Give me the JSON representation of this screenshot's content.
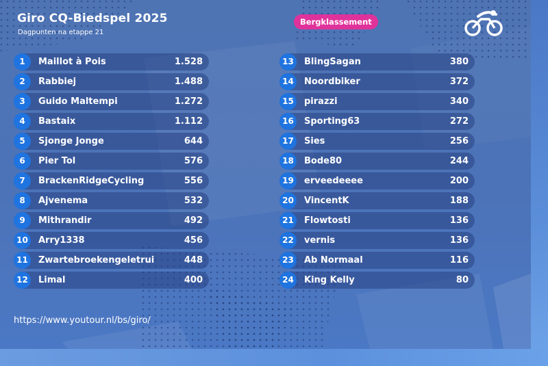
{
  "header": {
    "title": "Giro CQ-Biedspel 2025",
    "subtitle": "Dagpunten na etappe 21",
    "badge": "Bergklassement",
    "logo_icon": "cycling-logo-icon"
  },
  "colors": {
    "background": "#4c73b8",
    "row": "#2a4786",
    "rank_circle": "#1f74e0",
    "badge": "#e0329b",
    "text": "#ffffff"
  },
  "standings": {
    "left": [
      {
        "rank": "1",
        "name": "Maillot à Pois",
        "points": "1.528"
      },
      {
        "rank": "2",
        "name": "Rabbiej",
        "points": "1.488"
      },
      {
        "rank": "3",
        "name": "Guido Maltempi",
        "points": "1.272"
      },
      {
        "rank": "4",
        "name": "Bastaix",
        "points": "1.112"
      },
      {
        "rank": "5",
        "name": "Sjonge Jonge",
        "points": "644"
      },
      {
        "rank": "6",
        "name": "Pier Tol",
        "points": "576"
      },
      {
        "rank": "7",
        "name": "BrackenRidgeCycling",
        "points": "556"
      },
      {
        "rank": "8",
        "name": "Ajvenema",
        "points": "532"
      },
      {
        "rank": "9",
        "name": "Mithrandir",
        "points": "492"
      },
      {
        "rank": "10",
        "name": "Arry1338",
        "points": "456"
      },
      {
        "rank": "11",
        "name": "Zwartebroekengeletrui",
        "points": "448"
      },
      {
        "rank": "12",
        "name": "Limal",
        "points": "400"
      }
    ],
    "right": [
      {
        "rank": "13",
        "name": "BlingSagan",
        "points": "380"
      },
      {
        "rank": "14",
        "name": "Noordbiker",
        "points": "372"
      },
      {
        "rank": "15",
        "name": "pirazzi",
        "points": "340"
      },
      {
        "rank": "16",
        "name": "Sporting63",
        "points": "272"
      },
      {
        "rank": "17",
        "name": "Sies",
        "points": "256"
      },
      {
        "rank": "18",
        "name": "Bode80",
        "points": "244"
      },
      {
        "rank": "19",
        "name": "erveedeeee",
        "points": "200"
      },
      {
        "rank": "20",
        "name": "VincentK",
        "points": "188"
      },
      {
        "rank": "21",
        "name": "Flowtosti",
        "points": "136"
      },
      {
        "rank": "22",
        "name": "vernis",
        "points": "136"
      },
      {
        "rank": "23",
        "name": "Ab Normaal",
        "points": "116"
      },
      {
        "rank": "24",
        "name": "King Kelly",
        "points": "80"
      }
    ]
  },
  "footer": {
    "link": "https://www.youtour.nl/bs/giro/"
  }
}
